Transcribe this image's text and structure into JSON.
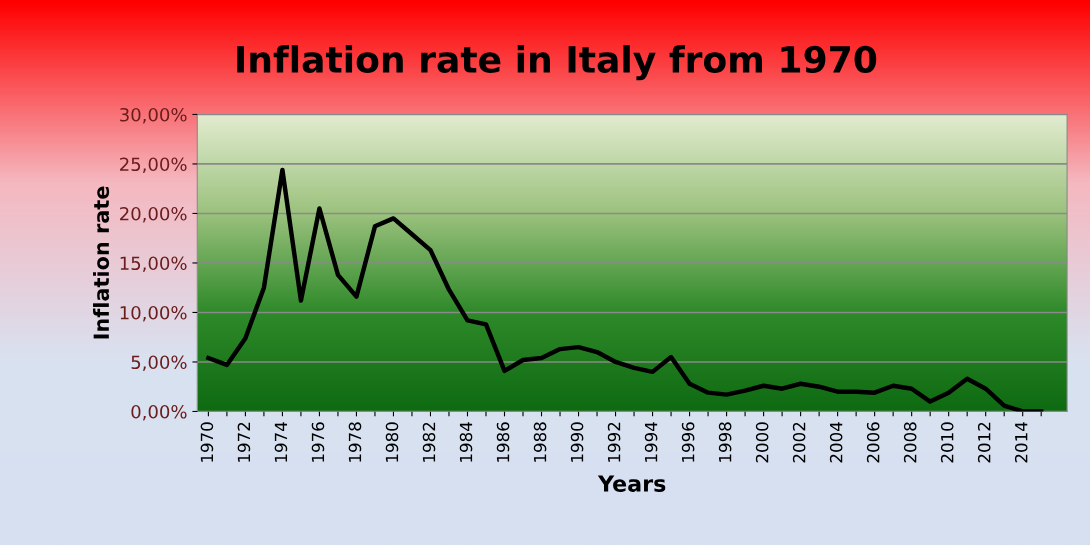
{
  "chart_data": {
    "type": "line",
    "title": "Inflation rate in Italy from 1970",
    "xlabel": "Years",
    "ylabel": "Inflation rate",
    "categories": [
      "1970",
      null,
      "1972",
      null,
      "1974",
      null,
      "1976",
      null,
      "1978",
      null,
      "1980",
      null,
      "1982",
      null,
      "1984",
      null,
      "1986",
      null,
      "1988",
      null,
      "1990",
      null,
      "1992",
      null,
      "1994",
      null,
      "1996",
      null,
      "1998",
      null,
      "2000",
      null,
      "2002",
      null,
      "2004",
      null,
      "2006",
      null,
      "2008",
      null,
      "2010",
      null,
      "2012",
      null,
      "2014",
      null
    ],
    "series": [
      {
        "color": "#000000",
        "values": [
          5.4,
          4.7,
          7.4,
          12.5,
          24.4,
          11.2,
          20.5,
          13.8,
          11.6,
          18.7,
          19.5,
          17.9,
          16.3,
          12.3,
          9.2,
          8.8,
          4.1,
          5.2,
          5.4,
          6.3,
          6.5,
          6.0,
          5.0,
          4.4,
          4.0,
          5.5,
          2.8,
          1.9,
          1.7,
          2.1,
          2.6,
          2.3,
          2.8,
          2.5,
          2.0,
          2.0,
          1.9,
          2.6,
          2.3,
          1.0,
          1.9,
          3.3,
          2.3,
          0.6,
          0.0,
          0.0
        ]
      }
    ],
    "ylim": [
      0,
      30
    ],
    "yticks": [
      {
        "value": 0,
        "label": "0,00%"
      },
      {
        "value": 5,
        "label": "5,00%"
      },
      {
        "value": 10,
        "label": "10,00%"
      },
      {
        "value": 15,
        "label": "15,00%"
      },
      {
        "value": 20,
        "label": "20,00%"
      },
      {
        "value": 25,
        "label": "25,00%"
      },
      {
        "value": 30,
        "label": "30,00%"
      }
    ],
    "grid": "y",
    "marker": "none",
    "line_style": "solid"
  }
}
